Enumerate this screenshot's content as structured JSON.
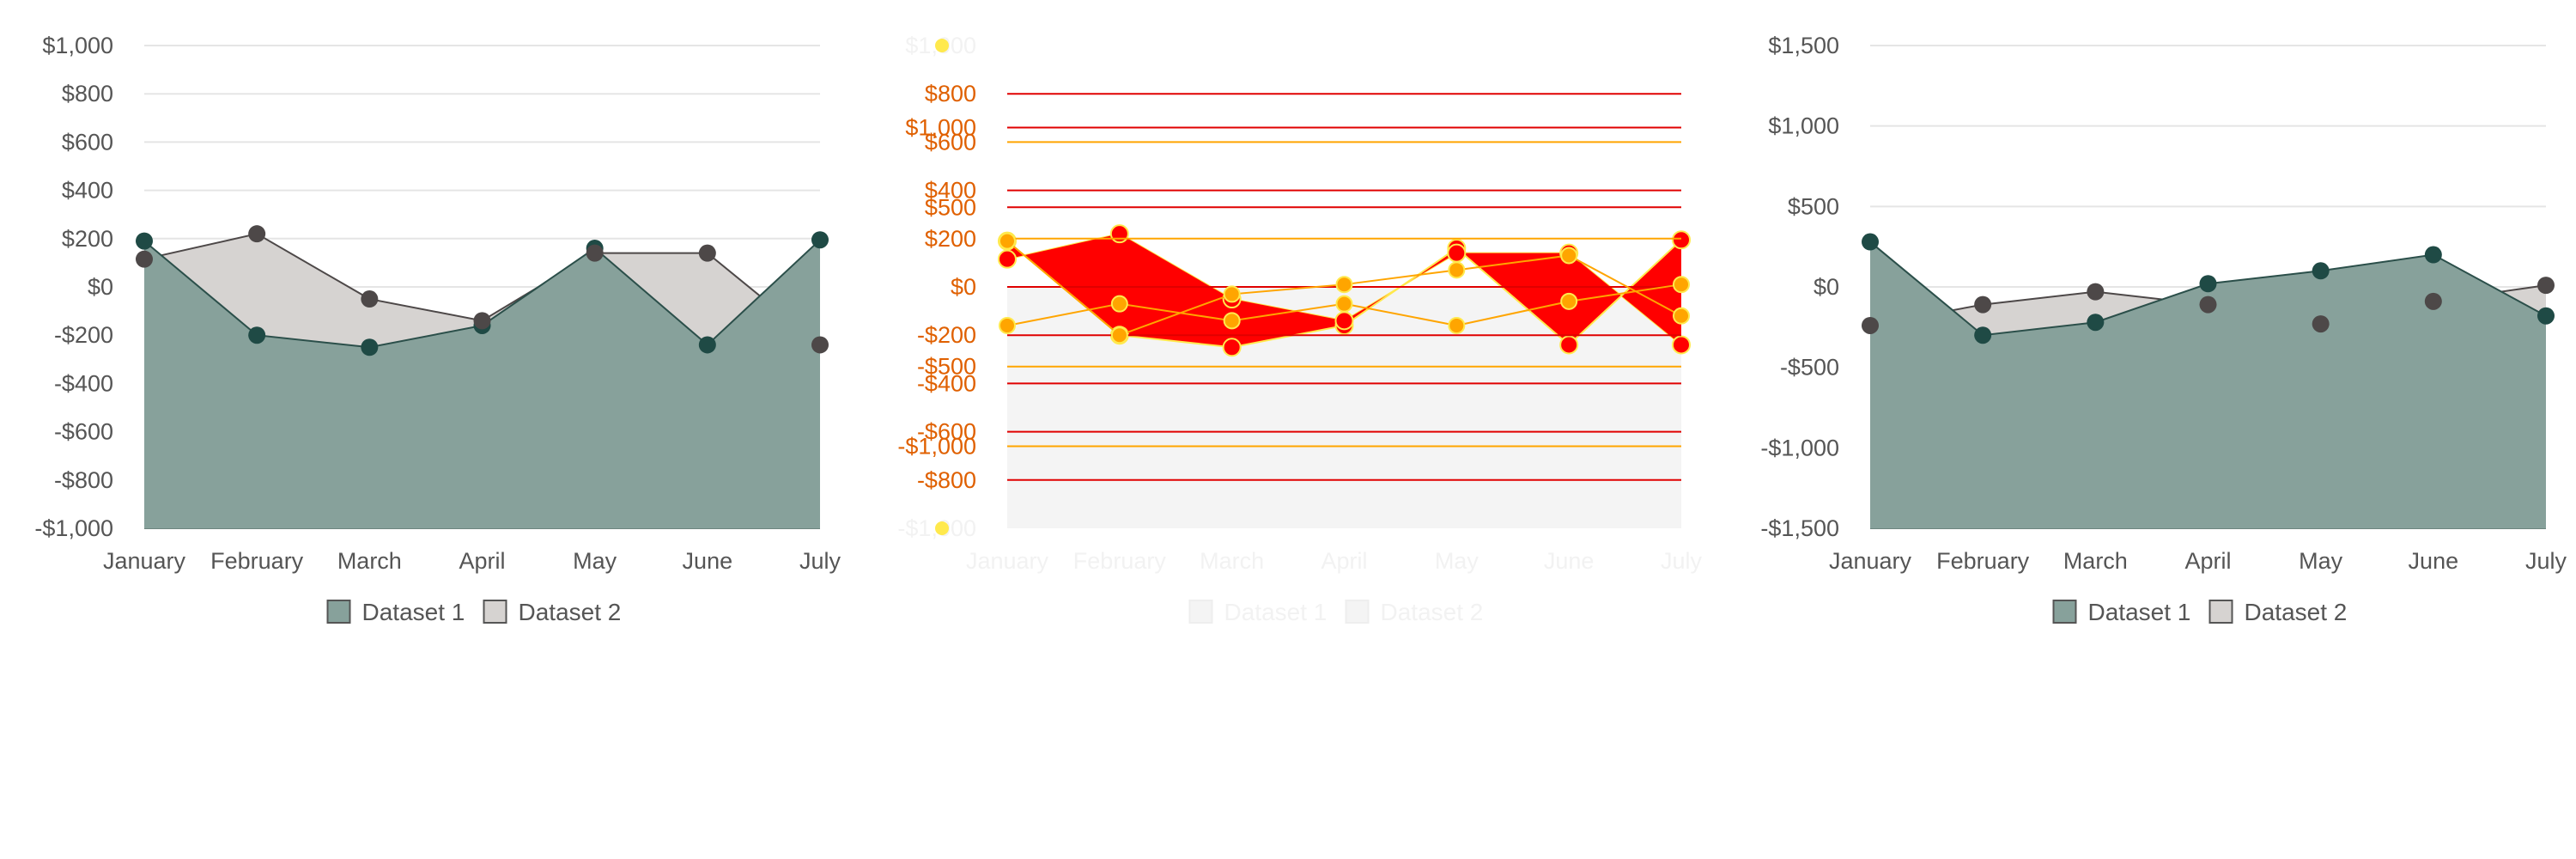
{
  "colors": {
    "dataset1_fill": "#87a19b",
    "dataset1_point": "#1f4a45",
    "dataset1_line": "#2b4f4a",
    "dataset2_fill": "#d6d3d1",
    "dataset2_point": "#4d4848",
    "dataset2_line": "#4d4848",
    "grid": "#e5e5e5",
    "grid_dark": "#6e8580",
    "tick_text": "#555555",
    "debug_fill": "#ff0000",
    "debug_line": "#ffa500",
    "debug_red_line": "#e00000",
    "debug_text": "#e06000",
    "debug_ghost_text": "#f2f2f2",
    "debug_bg": "#f4f4f4",
    "debug_point_yellow": "#ffe94d"
  },
  "chart_data": [
    {
      "type": "area",
      "title": "",
      "categories": [
        "January",
        "February",
        "March",
        "April",
        "May",
        "June",
        "July"
      ],
      "ylim": [
        -1000,
        1000
      ],
      "yticks": [
        1000,
        800,
        600,
        400,
        200,
        0,
        -200,
        -400,
        -600,
        -800,
        -1000
      ],
      "ytick_labels": [
        "$1,000",
        "$800",
        "$600",
        "$400",
        "$200",
        "$0",
        "-$200",
        "-$400",
        "-$600",
        "-$800",
        "-$1,000"
      ],
      "grid": true,
      "legend_position": "bottom",
      "series": [
        {
          "name": "Dataset 1",
          "values": [
            190,
            -200,
            -250,
            -160,
            160,
            -240,
            195
          ]
        },
        {
          "name": "Dataset 2",
          "values": [
            115,
            220,
            -50,
            -140,
            140,
            140,
            -240
          ]
        }
      ]
    },
    {
      "type": "area",
      "title": "",
      "categories": [
        "January",
        "February",
        "March",
        "April",
        "May",
        "June",
        "July"
      ],
      "ylim": [
        -1000,
        1000
      ],
      "yticks": [
        1000,
        800,
        600,
        400,
        200,
        0,
        -200,
        -400,
        -600,
        -800,
        -1000
      ],
      "ytick_labels": [
        "$1,000",
        "$800",
        "$600",
        "$400",
        "$200",
        "$0",
        "-$200",
        "-$400",
        "-$600",
        "-$800",
        "-$1,000"
      ],
      "overlay_tick_labels": [
        "$800",
        "$1,000",
        "$600",
        "$400",
        "$500",
        "$200",
        "$0",
        "-$200",
        "-$500",
        "-$400",
        "-$600",
        "-$1,000",
        "-$800"
      ],
      "overlay_tick_values": [
        800,
        660,
        600,
        400,
        330,
        200,
        0,
        -200,
        -330,
        -400,
        -600,
        -660,
        -800
      ],
      "legend_position": "bottom",
      "series": [
        {
          "name": "Dataset 1",
          "values": [
            190,
            -200,
            -250,
            -160,
            160,
            -240,
            195
          ]
        },
        {
          "name": "Dataset 2",
          "values": [
            115,
            220,
            -50,
            -140,
            140,
            140,
            -240
          ]
        }
      ],
      "overlay_series": [
        {
          "values": [
            -160,
            -70,
            -140,
            -70,
            -160,
            -60,
            10
          ]
        },
        {
          "values": [
            190,
            -200,
            -30,
            10,
            70,
            130,
            -120
          ]
        }
      ]
    },
    {
      "type": "area",
      "title": "",
      "categories": [
        "January",
        "February",
        "March",
        "April",
        "May",
        "June",
        "July"
      ],
      "ylim": [
        -1500,
        1500
      ],
      "yticks": [
        1500,
        1000,
        500,
        0,
        -500,
        -1000,
        -1500
      ],
      "ytick_labels": [
        "$1,500",
        "$1,000",
        "$500",
        "$0",
        "-$500",
        "-$1,000",
        "-$1,500"
      ],
      "grid": true,
      "legend_position": "bottom",
      "series": [
        {
          "name": "Dataset 1",
          "values": [
            280,
            -300,
            -220,
            20,
            100,
            200,
            -180
          ]
        },
        {
          "name": "Dataset 2",
          "values": [
            -240,
            -110,
            -30,
            -110,
            -230,
            -90,
            10
          ]
        }
      ]
    }
  ]
}
